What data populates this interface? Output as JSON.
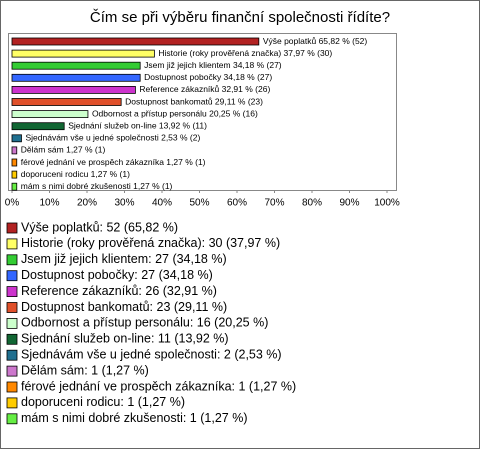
{
  "chart_data": {
    "type": "barh",
    "title": "Čím se při výběru finanční společnosti řídíte?",
    "categories": [
      "Výše poplatků",
      "Historie (roky prověřená značka)",
      "Jsem již jejich klientem",
      "Dostupnost pobočky",
      "Reference zákazníků",
      "Dostupnost bankomatů",
      "Odbornost a přístup personálu",
      "Sjednání služeb on-line",
      "Sjednávám vše u jedné společnosti",
      "Dělám sám",
      "férové jednání ve prospěch zákazníka",
      "doporuceni rodicu",
      "mám s nimi dobré zkušenosti"
    ],
    "values": [
      65.82,
      37.97,
      34.18,
      34.18,
      32.91,
      29.11,
      20.25,
      13.92,
      2.53,
      1.27,
      1.27,
      1.27,
      1.27
    ],
    "value_labels": [
      "Výše poplatků 65,82 % (52)",
      "Historie (roky prověřená značka) 37,97 % (30)",
      "Jsem již jejich klientem 34,18 % (27)",
      "Dostupnost pobočky 34,18 % (27)",
      "Reference zákazníků 32,91 % (26)",
      "Dostupnost bankomatů 29,11 % (23)",
      "Odbornost a přístup personálu 20,25 % (16)",
      "Sjednání služeb on-line 13,92 % (11)",
      "Sjednávám vše u jedné společnosti 2,53 % (2)",
      "Dělám sám 1,27 % (1)",
      "férové jednání ve prospěch zákazníka 1,27 % (1)",
      "doporuceni rodicu 1,27 % (1)",
      "mám s nimi dobré zkušenosti 1,27 % (1)"
    ],
    "legend_labels": [
      "Výše poplatků: 52 (65,82 %)",
      "Historie (roky prověřená značka): 30 (37,97 %)",
      "Jsem již jejich klientem: 27 (34,18 %)",
      "Dostupnost pobočky: 27 (34,18 %)",
      "Reference zákazníků: 26 (32,91 %)",
      "Dostupnost bankomatů: 23 (29,11 %)",
      "Odbornost a přístup personálu: 16 (20,25 %)",
      "Sjednání služeb on-line: 11 (13,92 %)",
      "Sjednávám vše u jedné společnosti: 2 (2,53 %)",
      "Dělám sám: 1 (1,27 %)",
      "férové jednání ve prospěch zákazníka: 1 (1,27 %)",
      "doporuceni rodicu: 1 (1,27 %)",
      "mám s nimi dobré zkušenosti: 1 (1,27 %)"
    ],
    "colors": [
      "#b22222",
      "#ffff66",
      "#33cc33",
      "#3366ff",
      "#cc33cc",
      "#e0502a",
      "#ccffcc",
      "#116633",
      "#1f6f8f",
      "#cc77cc",
      "#ff8800",
      "#ffcc00",
      "#66ee44"
    ],
    "xlim": [
      0,
      100
    ],
    "xticks": [
      {
        "value": 0,
        "label": "0%"
      },
      {
        "value": 10,
        "label": "10%"
      },
      {
        "value": 20,
        "label": "20%"
      },
      {
        "value": 30,
        "label": "30%"
      },
      {
        "value": 40,
        "label": "40%"
      },
      {
        "value": 50,
        "label": "50%"
      },
      {
        "value": 60,
        "label": "60%"
      },
      {
        "value": 70,
        "label": "70%"
      },
      {
        "value": 80,
        "label": "80%"
      },
      {
        "value": 90,
        "label": "90%"
      },
      {
        "value": 100,
        "label": "100%"
      }
    ]
  }
}
